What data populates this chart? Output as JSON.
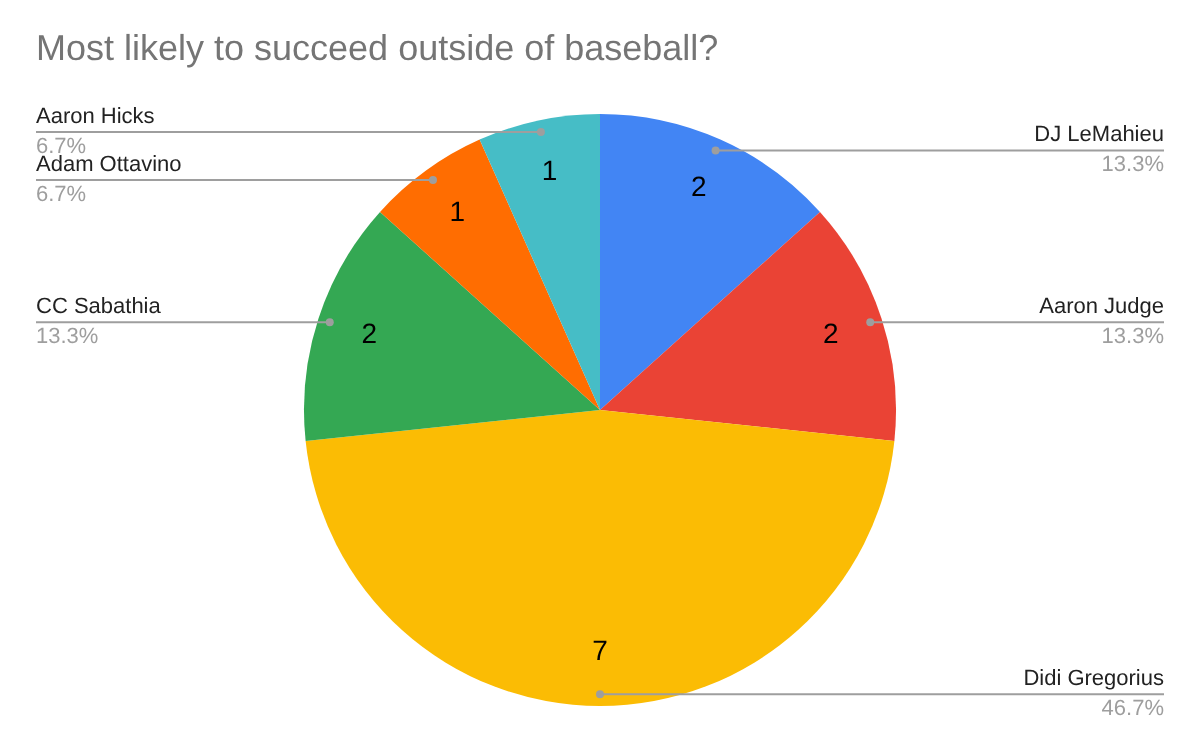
{
  "chart_data": {
    "type": "pie",
    "title": "Most likely to succeed outside of baseball?",
    "categories": [
      "DJ LeMahieu",
      "Aaron Judge",
      "Didi Gregorius",
      "CC Sabathia",
      "Adam Ottavino",
      "Aaron Hicks"
    ],
    "values": [
      2,
      2,
      7,
      2,
      1,
      1
    ],
    "colors": [
      "#4285f4",
      "#ea4335",
      "#fbbc04",
      "#34a853",
      "#ff6d01",
      "#46bdc6"
    ],
    "annotations": [
      "13.3%",
      "13.3%",
      "46.7%",
      "13.3%",
      "6.7%",
      "6.7%"
    ],
    "data_labels": true,
    "legend": false
  }
}
